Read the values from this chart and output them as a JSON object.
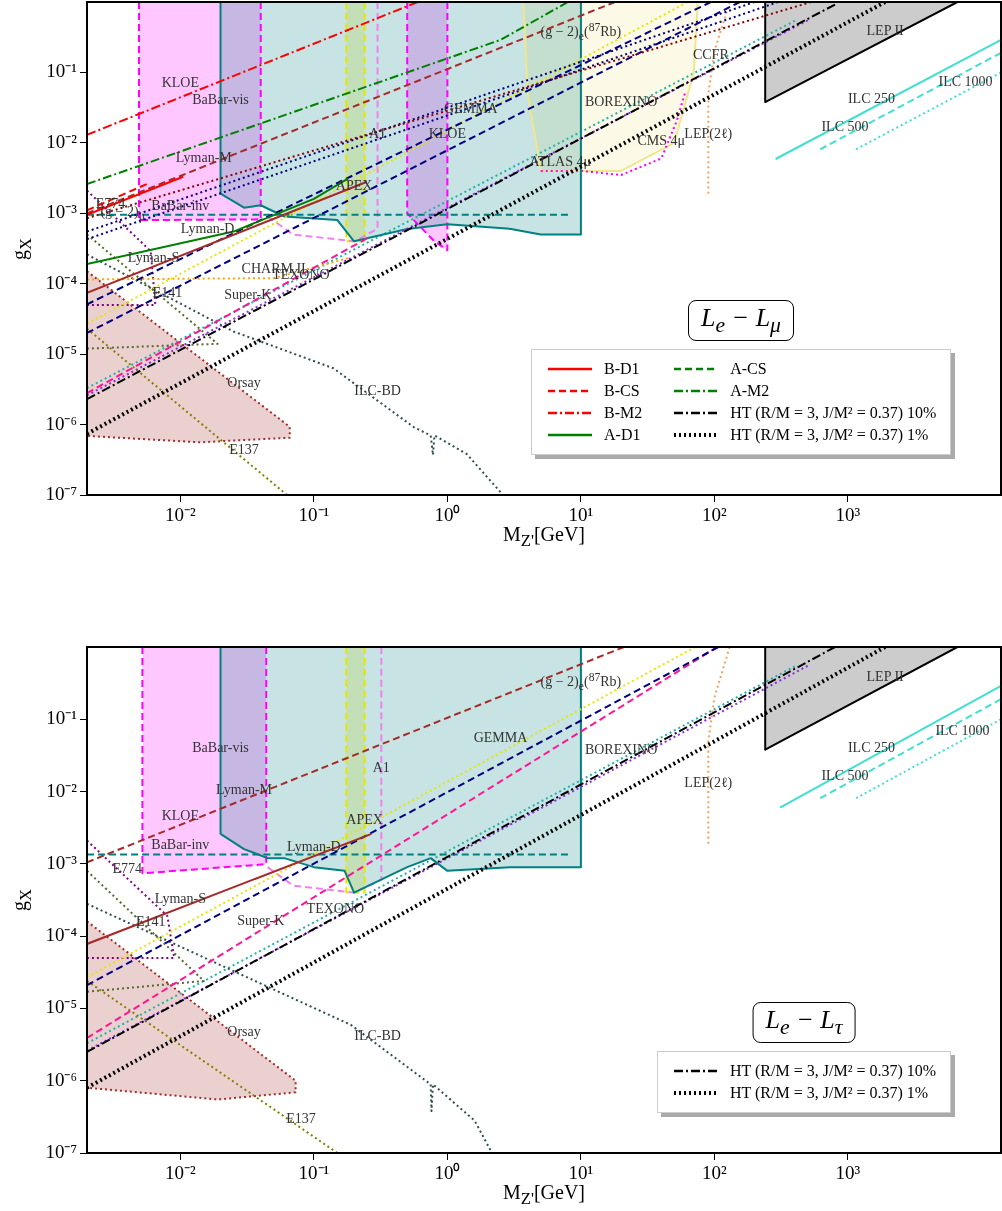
{
  "chart_data": [
    {
      "type": "line",
      "title": "L$_{e}$ − L$_{μ}$",
      "xlabel": "M$_{Z'}$[GeV]",
      "ylabel": "g$_{X}$",
      "log": "xy",
      "grid": false,
      "legend": "bottom right",
      "xlim": [
        0.002,
        14000
      ],
      "ylim": [
        1e-07,
        1
      ],
      "xticks": [
        {
          "value": 0.01,
          "label": "10⁻²"
        },
        {
          "value": 0.1,
          "label": "10⁻¹"
        },
        {
          "value": 1,
          "label": "10⁰"
        },
        {
          "value": 10,
          "label": "10¹"
        },
        {
          "value": 100,
          "label": "10²"
        },
        {
          "value": 1000,
          "label": "10³"
        }
      ],
      "yticks": [
        {
          "value": 1e-07,
          "label": "10⁻⁷"
        },
        {
          "value": 1e-06,
          "label": "10⁻⁶"
        },
        {
          "value": 1e-05,
          "label": "10⁻⁵"
        },
        {
          "value": 0.0001,
          "label": "10⁻⁴"
        },
        {
          "value": 0.001,
          "label": "10⁻³"
        },
        {
          "value": 0.01,
          "label": "10⁻²"
        },
        {
          "value": 0.1,
          "label": "10⁻¹"
        }
      ],
      "series": [
        {
          "name": "B-D1",
          "type": "line",
          "color": "#ff0000",
          "line_style": "solid",
          "x": [
            0.002,
            0.0105
          ],
          "values": [
            0.00095,
            0.0033
          ]
        },
        {
          "name": "B-CS",
          "type": "line",
          "color": "#ff0000",
          "line_style": "dashed",
          "x": [
            0.002,
            0.0056
          ],
          "values": [
            0.0011,
            0.0026
          ]
        },
        {
          "name": "B-M2",
          "type": "line",
          "color": "#ff0000",
          "line_style": "dashdot",
          "x": [
            0.002,
            0.6
          ],
          "values": [
            0.013,
            1
          ]
        },
        {
          "name": "A-D1",
          "type": "line",
          "color": "#008000",
          "line_style": "solid",
          "x": [
            0.002,
            0.025,
            0.1,
            0.18
          ],
          "values": [
            0.00019,
            0.00055,
            0.0016,
            0.0031
          ]
        },
        {
          "name": "A-CS",
          "type": "line",
          "color": "#008000",
          "line_style": "dashed"
        },
        {
          "name": "A-M2",
          "type": "line",
          "color": "#008000",
          "line_style": "dashdot",
          "x": [
            0.002,
            2.5,
            8
          ],
          "values": [
            0.0026,
            0.29,
            1
          ]
        },
        {
          "name": "HT (R/M = 3, J/M² = 0.37) 10%",
          "type": "line",
          "color": "#000000",
          "line_style": "dashdot",
          "x": [
            0.002,
            800
          ],
          "values": [
            2.3e-06,
            0.92
          ]
        },
        {
          "name": "HT (R/M = 3, J/M² = 0.37) 1%",
          "type": "line",
          "color": "#000000",
          "line_style": "dotted",
          "x": [
            0.002,
            1900
          ],
          "values": [
            7.4e-07,
            1
          ]
        },
        {
          "type": "line",
          "color": "#a52a2a",
          "line_style": "dashed",
          "x": [
            0.002,
            18
          ],
          "values": [
            0.001,
            1
          ]
        },
        {
          "type": "line",
          "color": "#a52a2a",
          "line_style": "solid",
          "x": [
            0.002,
            0.25
          ],
          "values": [
            7.4e-05,
            0.0028
          ]
        },
        {
          "type": "line",
          "color": "#8b0000",
          "line_style": "dotted",
          "x": [
            0.002,
            530
          ],
          "values": [
            0.00085,
            1
          ]
        },
        {
          "type": "line",
          "color": "#000080",
          "line_style": "dotted",
          "x": [
            0.002,
            200
          ],
          "values": [
            0.00055,
            1
          ]
        },
        {
          "type": "line",
          "color": "#000080",
          "line_style": "dotted",
          "x": [
            0.002,
            300
          ],
          "values": [
            0.00043,
            1
          ]
        },
        {
          "type": "line",
          "color": "#000080",
          "line_style": "dashed",
          "x": [
            0.002,
            94
          ],
          "values": [
            5.1e-05,
            1
          ]
        },
        {
          "type": "line",
          "color": "#000080",
          "line_style": "dashed",
          "x": [
            0.002,
            155
          ],
          "values": [
            2e-05,
            1
          ]
        },
        {
          "type": "line",
          "color": "#e6e600",
          "line_style": "dotted",
          "x": [
            0.002,
            63
          ],
          "values": [
            2.7e-05,
            1
          ]
        },
        {
          "type": "line",
          "color": "#ff1493",
          "line_style": "dashed",
          "x": [
            0.002,
            0.25
          ],
          "values": [
            2.8e-06,
            0.00044
          ]
        },
        {
          "type": "line",
          "color": "#8a2be2",
          "line_style": "dotted",
          "x": [
            0.002,
            500
          ],
          "values": [
            2.6e-06,
            0.55
          ]
        },
        {
          "type": "line",
          "color": "#ffa500",
          "line_style": "dotted",
          "x": [
            0.002,
            0.05,
            0.18
          ],
          "values": [
            0.000115,
            0.00012,
            0.00023
          ]
        },
        {
          "type": "line",
          "color": "#2f4f4f",
          "line_style": "dotted",
          "x": [
            0.002,
            0.025,
            0.14,
            0.56,
            0.75,
            0.78,
            0.8,
            1.4,
            2.5
          ],
          "values": [
            0.00026,
            2.1e-05,
            6.3e-06,
            9.2e-07,
            7e-07,
            3.7e-07,
            7e-07,
            3.8e-07,
            1.1e-07
          ]
        },
        {
          "type": "line",
          "color": "#808000",
          "line_style": "dotted",
          "x": [
            0.002,
            0.063
          ],
          "values": [
            2.3e-05,
            1e-07
          ]
        },
        {
          "type": "area",
          "color": "#a52a2a",
          "line_style": "dotted",
          "x": [
            0.002,
            0.066,
            0.066,
            0.014,
            0.002,
            0.002
          ],
          "values": [
            0.00015,
            9.3e-07,
            6.5e-07,
            5.6e-07,
            6.9e-07,
            0.00015
          ]
        },
        {
          "type": "area",
          "color": "#008080",
          "line_style": "solid",
          "x": [
            0.02,
            0.02,
            0.03,
            0.04,
            0.06,
            0.15,
            0.2,
            0.5,
            1,
            3,
            5,
            10,
            10
          ],
          "values": [
            1,
            0.0019,
            0.0012,
            0.0013,
            0.0009,
            0.0008,
            0.0004,
            0.0006,
            0.0007,
            0.0006,
            0.0005,
            0.0005,
            1
          ]
        },
        {
          "type": "line",
          "color": "#008080",
          "line_style": "dashed",
          "x": [
            0.002,
            8
          ],
          "values": [
            0.00095,
            0.00095
          ]
        },
        {
          "type": "area",
          "color": "#ff00ff",
          "line_style": "dashed",
          "x": [
            0.0049,
            0.0049,
            0.04,
            0.04
          ],
          "values": [
            1,
            0.0008,
            0.00082,
            1
          ]
        },
        {
          "type": "area",
          "color": "#ff00ff",
          "line_style": "dashed",
          "x": [
            0.5,
            0.5,
            0.8,
            1,
            1
          ],
          "values": [
            1,
            0.001,
            0.0004,
            0.0003,
            1
          ]
        },
        {
          "type": "line",
          "color": "#ee82ee",
          "line_style": "dashed",
          "x": [
            0.045,
            0.07,
            0.2,
            0.3,
            0.3
          ],
          "values": [
            0.0009,
            0.0005,
            0.0004,
            0.0006,
            1
          ]
        },
        {
          "type": "area",
          "color": "#e6e600",
          "line_style": "dashed",
          "x": [
            0.175,
            0.175,
            0.24,
            0.24
          ],
          "values": [
            1,
            0.0004,
            0.0004,
            1
          ]
        },
        {
          "type": "line",
          "color": "#ff00ff",
          "line_style": "dotted",
          "x": [
            5,
            10,
            20,
            40,
            52,
            60
          ],
          "values": [
            0.004,
            0.004,
            0.0035,
            0.006,
            0.02,
            0.05
          ]
        },
        {
          "type": "area",
          "color": "#f0e68c",
          "line_style": "solid",
          "x": [
            3.7,
            4,
            5,
            20,
            50,
            70,
            75
          ],
          "values": [
            1,
            0.05,
            0.004,
            0.004,
            0.01,
            0.1,
            1
          ]
        },
        {
          "type": "line",
          "color": "#f4a460",
          "line_style": "dotted",
          "x": [
            90,
            90,
            100,
            130
          ],
          "values": [
            0.0019,
            0.05,
            0.2,
            1
          ]
        },
        {
          "type": "area",
          "color": "#000000",
          "line_style": "solid",
          "x": [
            240,
            6600,
            240,
            240
          ],
          "values": [
            0.038,
            1,
            1,
            0.038
          ]
        },
        {
          "type": "line",
          "color": "#40e0d0",
          "line_style": "solid",
          "x": [
            287,
            14000
          ],
          "values": [
            0.0059,
            0.29
          ]
        },
        {
          "type": "line",
          "color": "#40e0d0",
          "line_style": "dashed",
          "x": [
            620,
            14000
          ],
          "values": [
            0.0081,
            0.19
          ]
        },
        {
          "type": "line",
          "color": "#40e0d0",
          "line_style": "dotted",
          "x": [
            1150,
            14000
          ],
          "values": [
            0.0081,
            0.1
          ]
        },
        {
          "type": "line",
          "color": "#800080",
          "line_style": "dotted",
          "x": [
            0.002,
            0.006,
            0.0065,
            0.002
          ],
          "values": [
            0.0021,
            0.00029,
            5e-05,
            5e-05
          ]
        },
        {
          "type": "line",
          "color": "#556b2f",
          "line_style": "dotted",
          "x": [
            0.002,
            0.019,
            0.002
          ],
          "values": [
            0.0005,
            1.4e-05,
            1.2e-05
          ]
        },
        {
          "type": "line",
          "color": "#20b2aa",
          "line_style": "dotted",
          "x": [
            0.002,
            400
          ],
          "values": [
            3.3e-06,
            0.54
          ]
        }
      ],
      "annotations": [
        {
          "text": "KLOE",
          "x": 0.01,
          "y": 0.052
        },
        {
          "text": "BaBar-vis",
          "x": 0.02,
          "y": 0.03
        },
        {
          "text": "Lyman-M",
          "x": 0.015,
          "y": 0.0046
        },
        {
          "text": "E774",
          "x": 0.003,
          "y": 0.00101
        },
        {
          "text": "BaBar-inv",
          "x": 0.01,
          "y": 0.00095
        },
        {
          "text": "(g − 2)$_{μ}$",
          "x": 0.0037,
          "y": 0.00065
        },
        {
          "text": "Lyman-S",
          "x": 0.0063,
          "y": 0.000175
        },
        {
          "text": "Lyman-D",
          "x": 0.016,
          "y": 0.00044
        },
        {
          "text": "CHARM II",
          "x": 0.05,
          "y": 0.00012
        },
        {
          "text": "E141",
          "x": 0.008,
          "y": 5.5e-05
        },
        {
          "text": "Super-K",
          "x": 0.032,
          "y": 5.1e-05
        },
        {
          "text": "TEXONO",
          "x": 0.08,
          "y": 9.9e-05
        },
        {
          "text": "Orsay",
          "x": 0.03,
          "y": 2.9e-06
        },
        {
          "text": "ILC-BD",
          "x": 0.3,
          "y": 2.2e-06
        },
        {
          "text": "E137",
          "x": 0.03,
          "y": 3.2e-07
        },
        {
          "text": "APEX",
          "x": 0.2,
          "y": 0.0018
        },
        {
          "text": "A1",
          "x": 0.3,
          "y": 0.01
        },
        {
          "text": "KLOE",
          "x": 1,
          "y": 0.01
        },
        {
          "text": "GEMMA",
          "x": 1.5,
          "y": 0.0225
        },
        {
          "text": "(g − 2)$_{e}$($^{87}$Rb)",
          "x": 10,
          "y": 0.24
        },
        {
          "text": "BOREXINO",
          "x": 20,
          "y": 0.0284
        },
        {
          "text": "ATLAS 4μ",
          "x": 7,
          "y": 0.004
        },
        {
          "text": "CMS 4μ",
          "x": 40,
          "y": 0.008
        },
        {
          "text": "CCFR",
          "x": 94,
          "y": 0.13
        },
        {
          "text": "LEP(2ℓ)",
          "x": 90,
          "y": 0.01
        },
        {
          "text": "LEP II",
          "x": 1900,
          "y": 0.29
        },
        {
          "text": "ILC 250",
          "x": 1500,
          "y": 0.031
        },
        {
          "text": "ILC 500",
          "x": 950,
          "y": 0.0125
        },
        {
          "text": "ILC 1000",
          "x": 7600,
          "y": 0.054
        }
      ]
    },
    {
      "type": "line",
      "title": "L$_{e}$ − L$_{τ}$",
      "xlabel": "M$_{Z'}$[GeV]",
      "ylabel": "g$_{X}$",
      "log": "xy",
      "grid": false,
      "legend": "bottom right",
      "xlim": [
        0.002,
        14000
      ],
      "ylim": [
        1e-07,
        1
      ],
      "xticks": [
        {
          "value": 0.01,
          "label": "10⁻²"
        },
        {
          "value": 0.1,
          "label": "10⁻¹"
        },
        {
          "value": 1,
          "label": "10⁰"
        },
        {
          "value": 10,
          "label": "10¹"
        },
        {
          "value": 100,
          "label": "10²"
        },
        {
          "value": 1000,
          "label": "10³"
        }
      ],
      "yticks": [
        {
          "value": 1e-07,
          "label": "10⁻⁷"
        },
        {
          "value": 1e-06,
          "label": "10⁻⁶"
        },
        {
          "value": 1e-05,
          "label": "10⁻⁵"
        },
        {
          "value": 0.0001,
          "label": "10⁻⁴"
        },
        {
          "value": 0.001,
          "label": "10⁻³"
        },
        {
          "value": 0.01,
          "label": "10⁻²"
        },
        {
          "value": 0.1,
          "label": "10⁻¹"
        }
      ],
      "series": [
        {
          "name": "HT (R/M = 3, J/M² = 0.37) 10%",
          "type": "line",
          "color": "#000000",
          "line_style": "dashdot",
          "x": [
            0.002,
            800
          ],
          "values": [
            2.5e-06,
            1
          ]
        },
        {
          "name": "HT (R/M = 3, J/M² = 0.37) 1%",
          "type": "line",
          "color": "#000000",
          "line_style": "dotted",
          "x": [
            0.002,
            1900
          ],
          "values": [
            8e-07,
            1
          ]
        },
        {
          "type": "line",
          "color": "#a52a2a",
          "line_style": "dashed",
          "x": [
            0.002,
            21
          ],
          "values": [
            0.00105,
            1
          ]
        },
        {
          "type": "line",
          "color": "#a52a2a",
          "line_style": "solid",
          "x": [
            0.002,
            0.27
          ],
          "values": [
            7.8e-05,
            0.0026
          ]
        },
        {
          "type": "line",
          "color": "#000080",
          "line_style": "dashed",
          "x": [
            0.002,
            107
          ],
          "values": [
            2.1e-05,
            1
          ]
        },
        {
          "type": "line",
          "color": "#e6e600",
          "line_style": "dotted",
          "x": [
            0.002,
            72
          ],
          "values": [
            2.7e-05,
            1
          ]
        },
        {
          "type": "line",
          "color": "#ff1493",
          "line_style": "dashed",
          "x": [
            0.002,
            105
          ],
          "values": [
            3.9e-06,
            1
          ]
        },
        {
          "type": "line",
          "color": "#8a2be2",
          "line_style": "dotted",
          "x": [
            0.002,
            500
          ],
          "values": [
            2.6e-06,
            0.55
          ]
        },
        {
          "type": "line",
          "color": "#2f4f4f",
          "line_style": "dotted",
          "x": [
            0.002,
            0.19,
            0.75,
            0.76,
            0.78,
            1.6,
            2.1
          ],
          "values": [
            0.00028,
            5.9e-06,
            8.9e-07,
            3.8e-07,
            8.9e-07,
            2.8e-07,
            1.1e-07
          ]
        },
        {
          "type": "line",
          "color": "#808000",
          "line_style": "dotted",
          "x": [
            0.002,
            0.15
          ],
          "values": [
            2.4e-05,
            1e-07
          ]
        },
        {
          "type": "area",
          "color": "#a52a2a",
          "line_style": "dotted",
          "x": [
            0.002,
            0.073,
            0.073,
            0.019,
            0.002,
            0.002
          ],
          "values": [
            0.00016,
            1e-06,
            6.9e-07,
            5.5e-07,
            8e-07,
            0.00016
          ]
        },
        {
          "type": "area",
          "color": "#008080",
          "line_style": "solid",
          "x": [
            0.02,
            0.02,
            0.03,
            0.045,
            0.06,
            0.1,
            0.17,
            0.2,
            0.5,
            0.75,
            1,
            3,
            10,
            10
          ],
          "values": [
            1,
            0.0026,
            0.0016,
            0.0012,
            0.0012,
            0.0009,
            0.0008,
            0.0004,
            0.0009,
            0.0012,
            0.0008,
            0.0009,
            0.0009,
            1
          ]
        },
        {
          "type": "line",
          "color": "#008080",
          "line_style": "dashed",
          "x": [
            0.002,
            8
          ],
          "values": [
            0.00135,
            0.00135
          ]
        },
        {
          "type": "area",
          "color": "#ff00ff",
          "line_style": "dashed",
          "x": [
            0.0052,
            0.0052,
            0.044,
            0.044
          ],
          "values": [
            1,
            0.00074,
            0.00099,
            1
          ]
        },
        {
          "type": "line",
          "color": "#ee82ee",
          "line_style": "dashed",
          "x": [
            0.045,
            0.07,
            0.2,
            0.32,
            0.32
          ],
          "values": [
            0.0009,
            0.0005,
            0.0004,
            0.0006,
            1
          ]
        },
        {
          "type": "area",
          "color": "#e6e600",
          "line_style": "dashed",
          "x": [
            0.175,
            0.175,
            0.24,
            0.24
          ],
          "values": [
            1,
            0.0004,
            0.0004,
            1
          ]
        },
        {
          "type": "line",
          "color": "#f4a460",
          "line_style": "dotted",
          "x": [
            90,
            90,
            100,
            130
          ],
          "values": [
            0.0019,
            0.05,
            0.2,
            1
          ]
        },
        {
          "type": "area",
          "color": "#000000",
          "line_style": "solid",
          "x": [
            240,
            6600,
            240,
            240
          ],
          "values": [
            0.038,
            1,
            1,
            0.038
          ]
        },
        {
          "type": "line",
          "color": "#40e0d0",
          "line_style": "solid",
          "x": [
            310,
            14000
          ],
          "values": [
            0.006,
            0.29
          ]
        },
        {
          "type": "line",
          "color": "#40e0d0",
          "line_style": "dashed",
          "x": [
            620,
            14000
          ],
          "values": [
            0.0081,
            0.19
          ]
        },
        {
          "type": "line",
          "color": "#40e0d0",
          "line_style": "dotted",
          "x": [
            1150,
            14000
          ],
          "values": [
            0.0081,
            0.1
          ]
        },
        {
          "type": "line",
          "color": "#800080",
          "line_style": "dotted",
          "x": [
            0.002,
            0.008,
            0.009,
            0.002
          ],
          "values": [
            0.0021,
            0.00019,
            5e-05,
            5e-05
          ]
        },
        {
          "type": "line",
          "color": "#556b2f",
          "line_style": "dotted",
          "x": [
            0.002,
            0.015,
            0.002
          ],
          "values": [
            0.0008,
            2.4e-05,
            1.7e-05
          ]
        },
        {
          "type": "line",
          "color": "#20b2aa",
          "line_style": "dotted",
          "x": [
            0.002,
            400
          ],
          "values": [
            3.3e-06,
            0.54
          ]
        }
      ],
      "annotations": [
        {
          "text": "KLOE",
          "x": 0.01,
          "y": 0.0034
        },
        {
          "text": "BaBar-vis",
          "x": 0.02,
          "y": 0.03
        },
        {
          "text": "Lyman-M",
          "x": 0.03,
          "y": 0.0078
        },
        {
          "text": "E774",
          "x": 0.004,
          "y": 0.00063
        },
        {
          "text": "BaBar-inv",
          "x": 0.01,
          "y": 0.00135
        },
        {
          "text": "Lyman-S",
          "x": 0.01,
          "y": 0.000247
        },
        {
          "text": "Lyman-D",
          "x": 0.1,
          "y": 0.00128
        },
        {
          "text": "E141",
          "x": 0.006,
          "y": 0.000118
        },
        {
          "text": "Super-K",
          "x": 0.04,
          "y": 0.000121
        },
        {
          "text": "TEXONO",
          "x": 0.145,
          "y": 0.000178
        },
        {
          "text": "Orsay",
          "x": 0.03,
          "y": 3.5e-06
        },
        {
          "text": "ILC-BD",
          "x": 0.3,
          "y": 3.1e-06
        },
        {
          "text": "E137",
          "x": 0.08,
          "y": 2.2e-07
        },
        {
          "text": "APEX",
          "x": 0.24,
          "y": 0.003
        },
        {
          "text": "A1",
          "x": 0.32,
          "y": 0.016
        },
        {
          "text": "GEMMA",
          "x": 2.5,
          "y": 0.042
        },
        {
          "text": "(g − 2)$_{e}$($^{87}$Rb)",
          "x": 10,
          "y": 0.21
        },
        {
          "text": "BOREXINO",
          "x": 20,
          "y": 0.0284
        },
        {
          "text": "LEP(2ℓ)",
          "x": 90,
          "y": 0.01
        },
        {
          "text": "LEP II",
          "x": 1900,
          "y": 0.29
        },
        {
          "text": "ILC 250",
          "x": 1500,
          "y": 0.0299
        },
        {
          "text": "ILC 500",
          "x": 950,
          "y": 0.0125
        },
        {
          "text": "ILC 1000",
          "x": 7200,
          "y": 0.051
        }
      ]
    }
  ]
}
